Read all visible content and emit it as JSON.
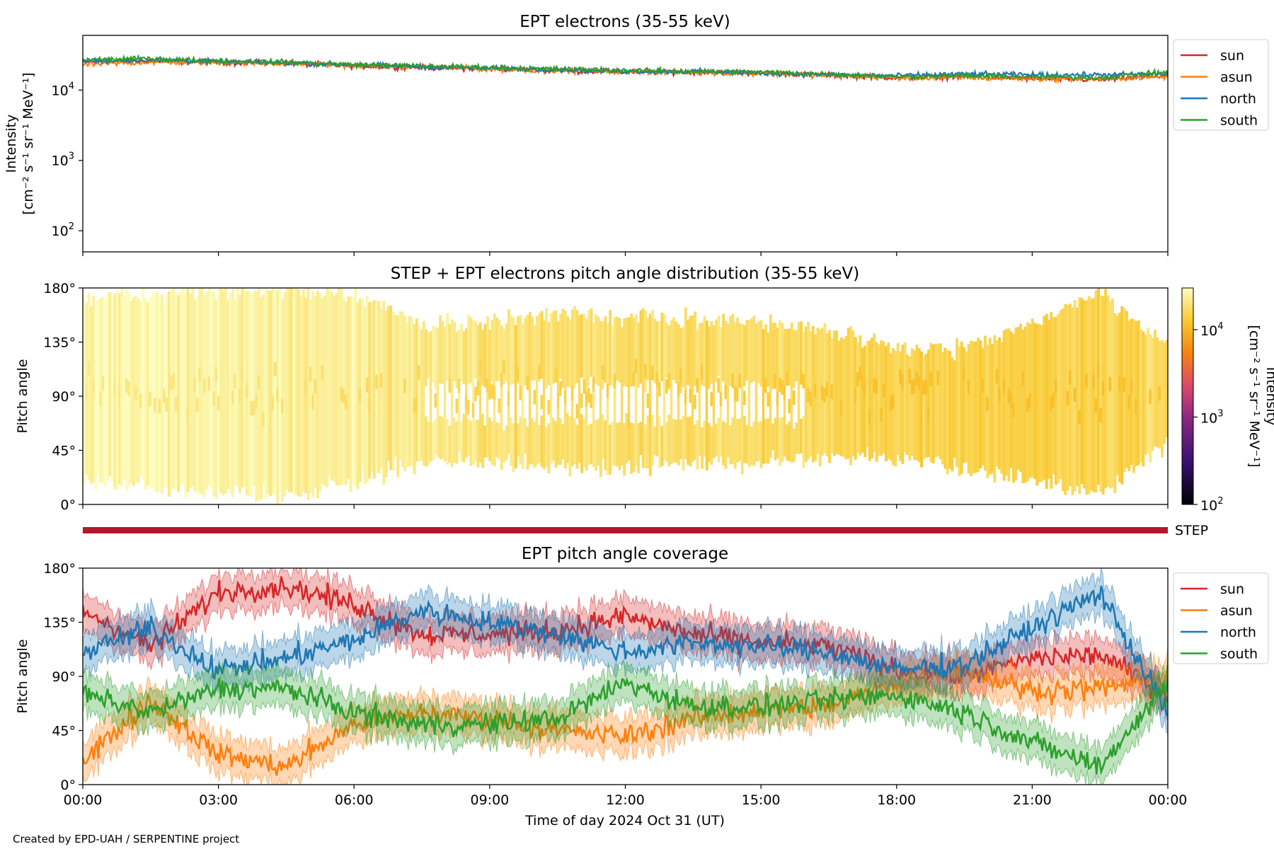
{
  "footer": "Created by EPD-UAH / SERPENTINE project",
  "colors": {
    "sun": "#d62728",
    "asun": "#ff7f0e",
    "north": "#1f77b4",
    "south": "#2ca02c",
    "step_bar": "#b2182b"
  },
  "chart_data": [
    {
      "type": "line",
      "title": "EPT electrons (35-55 keV)",
      "ylabel_line1": "Intensity",
      "ylabel_line2": "[cm⁻² s⁻¹ sr⁻¹ MeV⁻¹]",
      "y_scale": "log",
      "ylim": [
        50,
        60000
      ],
      "x_hours": [
        0,
        1.5,
        3,
        4.5,
        6,
        7.5,
        9,
        10.5,
        12,
        13.5,
        15,
        16.5,
        18,
        19.5,
        21,
        22.5,
        24
      ],
      "yticks": [
        {
          "value": 100,
          "base": "10",
          "exp": "2"
        },
        {
          "value": 1000,
          "base": "10",
          "exp": "3"
        },
        {
          "value": 10000,
          "base": "10",
          "exp": "4"
        }
      ],
      "legend": {
        "position": "outside-top-right"
      },
      "series": [
        {
          "name": "sun",
          "values": [
            25000,
            26000,
            25000,
            24000,
            22000,
            21000,
            20000,
            19000,
            18000,
            18000,
            17500,
            16500,
            15000,
            15500,
            14500,
            14000,
            16000
          ]
        },
        {
          "name": "asun",
          "values": [
            23000,
            25000,
            24500,
            24000,
            22500,
            21500,
            20000,
            19000,
            18500,
            18000,
            17500,
            16000,
            15000,
            15000,
            14500,
            14500,
            15500
          ]
        },
        {
          "name": "north",
          "values": [
            26000,
            27000,
            25500,
            24500,
            23000,
            21500,
            20500,
            19500,
            18500,
            18500,
            17500,
            16500,
            16000,
            17000,
            16500,
            16500,
            17000
          ]
        },
        {
          "name": "south",
          "values": [
            27000,
            28000,
            26000,
            25000,
            23000,
            22000,
            21000,
            20000,
            19000,
            18500,
            18000,
            17000,
            15500,
            16000,
            15500,
            15000,
            18000
          ]
        }
      ]
    },
    {
      "type": "heatmap",
      "title": "STEP + EPT electrons pitch angle distribution (35-55 keV)",
      "ylabel": "Pitch angle",
      "ylim": [
        0,
        180
      ],
      "yticks": [
        "0°",
        "45°",
        "90°",
        "135°",
        "180°"
      ],
      "colorbar": {
        "label_line1": "Intensity",
        "label_line2": "[cm⁻² s⁻¹ sr⁻¹ MeV⁻¹]",
        "scale": "log",
        "range": [
          100,
          30000
        ],
        "ticks": [
          {
            "value": 100,
            "base": "10",
            "exp": "2"
          },
          {
            "value": 1000,
            "base": "10",
            "exp": "3"
          },
          {
            "value": 10000,
            "base": "10",
            "exp": "4"
          }
        ]
      },
      "coverage_hours": [
        0,
        1.5,
        3,
        4.5,
        6,
        7.5,
        9,
        10.5,
        12,
        13.5,
        15,
        16.5,
        18,
        19.5,
        21,
        22.5,
        24
      ],
      "coverage_min_deg": [
        20,
        15,
        10,
        5,
        20,
        35,
        35,
        30,
        30,
        35,
        35,
        40,
        40,
        30,
        20,
        10,
        50
      ],
      "coverage_max_deg": [
        170,
        175,
        178,
        178,
        175,
        150,
        150,
        160,
        155,
        155,
        150,
        145,
        130,
        130,
        150,
        178,
        130
      ],
      "coverage_intensity": [
        28000,
        27000,
        27000,
        25000,
        23000,
        21000,
        20000,
        19000,
        18500,
        18000,
        17500,
        16500,
        15000,
        15500,
        15000,
        15000,
        16000
      ]
    },
    {
      "type": "bar",
      "label": "STEP",
      "coverage_hours": [
        0,
        24
      ]
    },
    {
      "type": "line",
      "title": "EPT pitch angle coverage",
      "ylabel": "Pitch angle",
      "xlabel": "Time of day 2024 Oct 31 (UT)",
      "ylim": [
        0,
        180
      ],
      "yticks": [
        "0°",
        "45°",
        "90°",
        "135°",
        "180°"
      ],
      "xticks": [
        "00:00",
        "03:00",
        "06:00",
        "09:00",
        "12:00",
        "15:00",
        "18:00",
        "21:00",
        "00:00"
      ],
      "x_hours": [
        0,
        1.5,
        3,
        4.5,
        6,
        7.5,
        9,
        10.5,
        12,
        13.5,
        15,
        16.5,
        18,
        19.5,
        21,
        22.5,
        24
      ],
      "band_halfwidth_deg": 15,
      "legend": {
        "position": "outside-top-right"
      },
      "series": [
        {
          "name": "sun",
          "values": [
            145,
            115,
            160,
            165,
            150,
            125,
            125,
            128,
            140,
            125,
            118,
            115,
            95,
            90,
            105,
            108,
            75
          ]
        },
        {
          "name": "asun",
          "values": [
            20,
            70,
            25,
            15,
            50,
            60,
            55,
            45,
            40,
            55,
            62,
            65,
            85,
            95,
            78,
            80,
            90
          ]
        },
        {
          "name": "north",
          "values": [
            110,
            130,
            95,
            105,
            120,
            145,
            135,
            125,
            110,
            118,
            115,
            110,
            95,
            100,
            130,
            160,
            60
          ]
        },
        {
          "name": "south",
          "values": [
            75,
            60,
            80,
            80,
            60,
            50,
            50,
            55,
            85,
            65,
            65,
            70,
            75,
            60,
            35,
            15,
            85
          ]
        }
      ]
    }
  ]
}
